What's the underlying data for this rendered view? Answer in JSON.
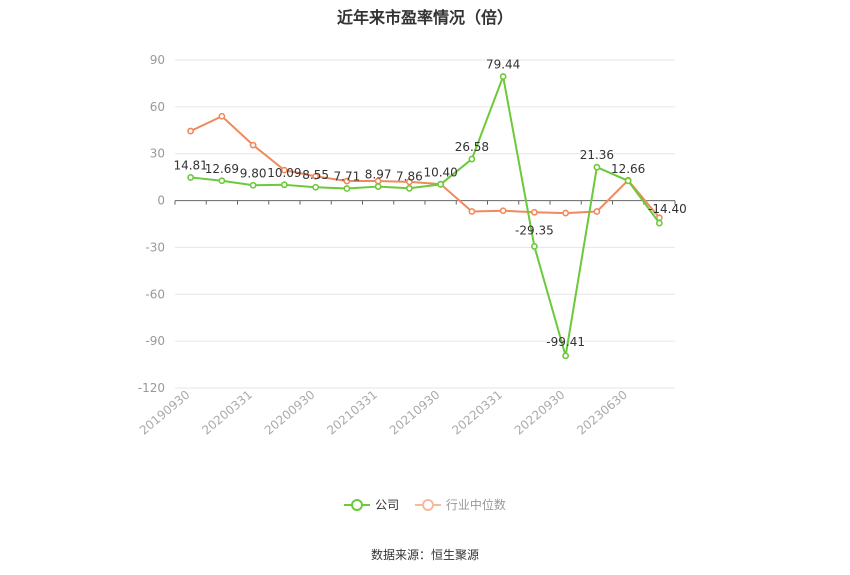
{
  "chart_data": {
    "type": "line",
    "title": "近年来市盈率情况（倍）",
    "categories": [
      "20190930",
      "20191231",
      "20200331",
      "20200630",
      "20200930",
      "20201231",
      "20210331",
      "20210630",
      "20210930",
      "20211231",
      "20220331",
      "20220630",
      "20220930",
      "20221231",
      "20230630",
      "20231231"
    ],
    "x_tick_labels": [
      "20190930",
      "20200331",
      "20200930",
      "20210331",
      "20210930",
      "20220331",
      "20220930",
      "20230630"
    ],
    "ylim": [
      -120,
      90
    ],
    "y_ticks": [
      90,
      60,
      30,
      0,
      -30,
      -60,
      -90,
      -120
    ],
    "grid": true,
    "legend_position": "bottom",
    "series": [
      {
        "name": "公司",
        "color": "#6cc93a",
        "values": [
          14.81,
          12.69,
          9.8,
          10.09,
          8.55,
          7.71,
          8.97,
          7.86,
          10.4,
          26.58,
          79.44,
          -29.35,
          -99.41,
          21.36,
          12.66,
          -14.4
        ],
        "labels": [
          "14.81",
          "12.69",
          "9.80",
          "10.09",
          "8.55",
          "7.71",
          "8.97",
          "7.86",
          "10.40",
          "26.58",
          "79.44",
          "-29.35",
          "-99.41",
          "21.36",
          "12.66",
          "-14.40"
        ]
      },
      {
        "name": "行业中位数",
        "color": "#f08a5d",
        "values": [
          44.5,
          54.0,
          35.5,
          19.5,
          15.5,
          12.5,
          12.5,
          12.0,
          10.5,
          -7.0,
          -6.5,
          -7.5,
          -8.0,
          -7.0,
          13.0,
          -11.0
        ]
      }
    ]
  },
  "source": "数据来源：恒生聚源"
}
